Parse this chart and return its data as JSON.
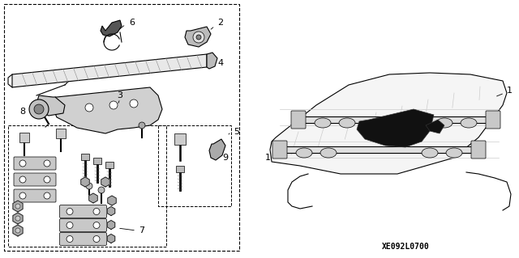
{
  "background_color": "#ffffff",
  "ref_code": "XE092L0700",
  "fig_width": 6.4,
  "fig_height": 3.19,
  "dpi": 100
}
